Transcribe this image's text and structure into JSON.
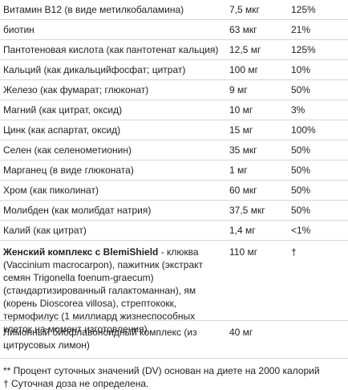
{
  "table": {
    "rows": [
      [
        "Витамин B12 (в виде метилкобаламина)",
        "7,5 мкг",
        "125%"
      ],
      [
        "биотин",
        "63 мкг",
        "21%"
      ],
      [
        "Пантотеновая кислота (как пантотенат кальция)",
        "12,5 мг",
        "125%"
      ],
      [
        "Кальций (как дикальцийфосфат; цитрат)",
        "100 мг",
        "10%"
      ],
      [
        "Железо (как фумарат; глюконат)",
        "9 мг",
        "50%"
      ],
      [
        "Магний (как цитрат, оксид)",
        "10 мг",
        "3%"
      ],
      [
        "Цинк (как аспартат, оксид)",
        "15 мг",
        "100%"
      ],
      [
        "Селен (как селенометионин)",
        "35 мкг",
        "50%"
      ],
      [
        "Марганец (в виде глюконата)",
        "1 мг",
        "50%"
      ],
      [
        "Хром (как пиколинат)",
        "60 мкг",
        "50%"
      ],
      [
        "Молибден (как молибдат натрия)",
        "37,5 мкг",
        "50%"
      ],
      [
        "Калий (как цитрат)",
        "1,4 мг",
        "<1%"
      ]
    ],
    "complex": {
      "name": "Женский комплекс с BlemiShield",
      "description": " - клюква (Vaccinium macrocarpon), пажитник (экстракт семян Trigonella foenum-graecum) (стандартизированный галактоманнан), ям (корень Dioscorea villosa), стрептококк, термофилус (1 миллиард жизнеспособных клеток на момент изготовления)",
      "amount": "110 мг",
      "dv": "†"
    },
    "last_row": [
      "Лимонный биофлавоноидный комплекс (из цитрусовых лимон)",
      "40 мг"
    ]
  },
  "footnotes": [
    "** Процент суточных значений (DV) основан на диете на 2000 калорий",
    "† Суточная доза не определена."
  ]
}
